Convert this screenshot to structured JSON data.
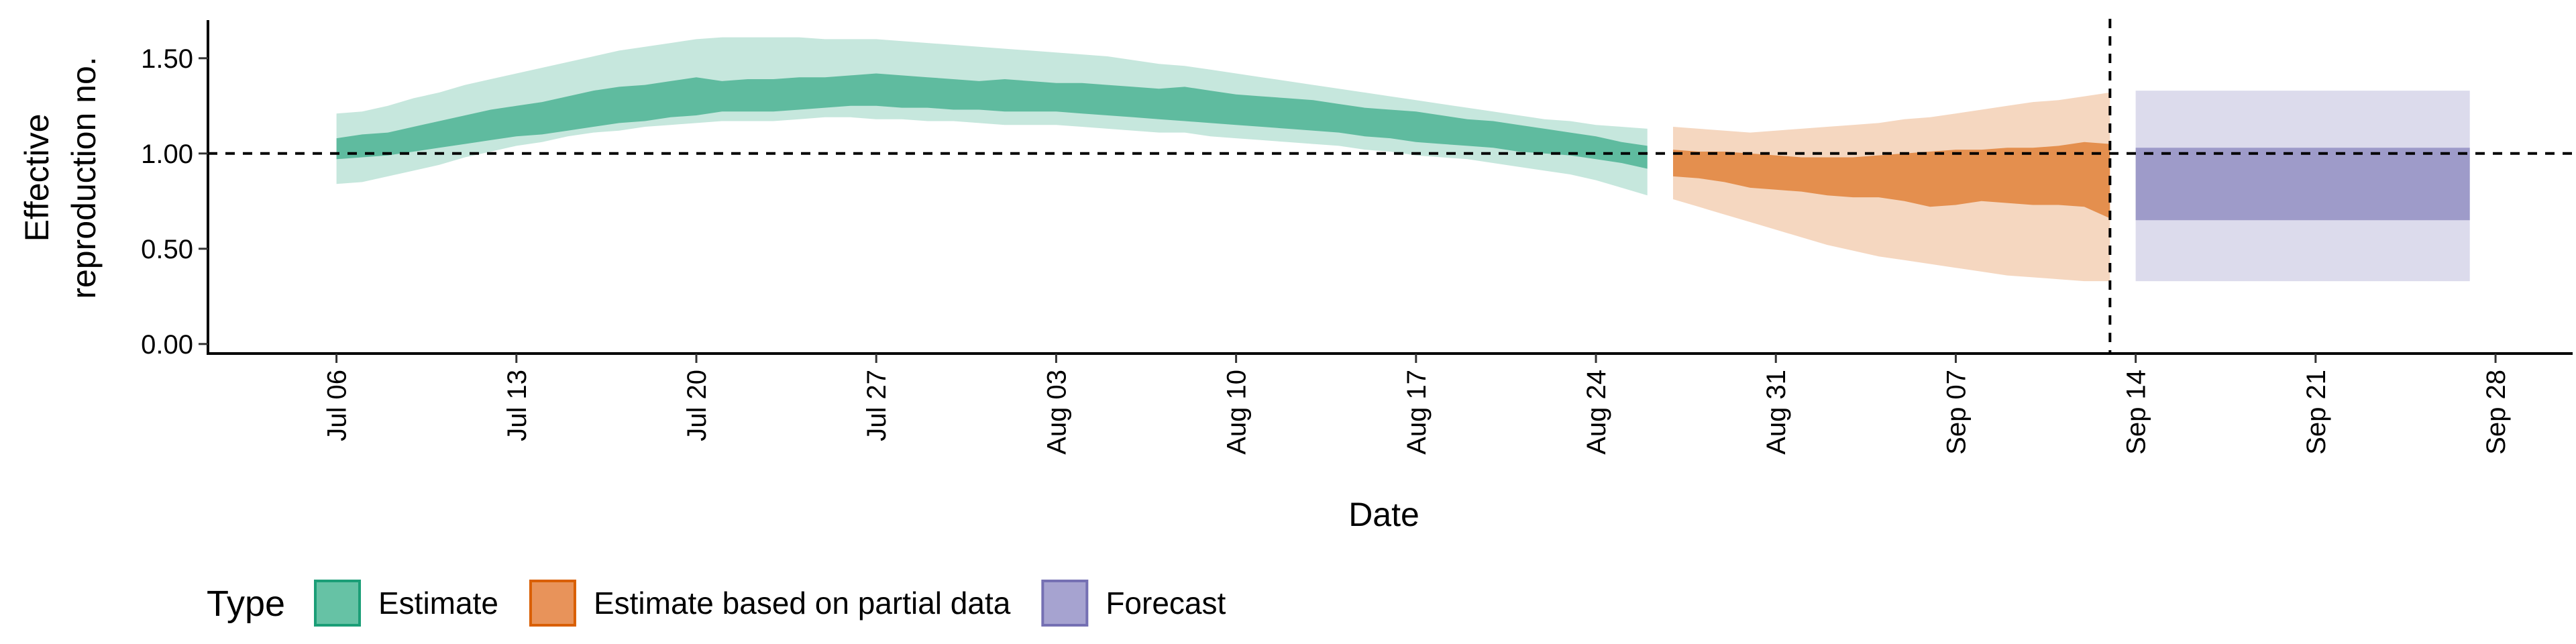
{
  "chart_data": {
    "type": "area",
    "xlabel": "Date",
    "ylabel_lines": [
      "Effective",
      "reproduction no."
    ],
    "ylim": [
      -0.05,
      1.7
    ],
    "xlim": [
      "2020-07-01",
      "2020-10-01"
    ],
    "y_ticks": [
      0.0,
      0.5,
      1.0,
      1.5
    ],
    "y_tick_labels": [
      "0.00",
      "0.50",
      "1.00",
      "1.50"
    ],
    "x_ticks": [
      "2020-07-06",
      "2020-07-13",
      "2020-07-20",
      "2020-07-27",
      "2020-08-03",
      "2020-08-10",
      "2020-08-17",
      "2020-08-24",
      "2020-08-31",
      "2020-09-07",
      "2020-09-14",
      "2020-09-21",
      "2020-09-28"
    ],
    "x_tick_labels": [
      "Jul 06",
      "Jul 13",
      "Jul 20",
      "Jul 27",
      "Aug 03",
      "Aug 10",
      "Aug 17",
      "Aug 24",
      "Aug 31",
      "Sep 07",
      "Sep 14",
      "Sep 21",
      "Sep 28"
    ],
    "reference_line_y": 1.0,
    "reference_line_x": "2020-09-13",
    "grid": false,
    "legend": {
      "title": "Type",
      "position": "bottom",
      "items": [
        {
          "label": "Estimate",
          "fill": "#66c2a5",
          "stroke": "#1b9e77"
        },
        {
          "label": "Estimate based on partial data",
          "fill": "#e8935a",
          "stroke": "#d95f02"
        },
        {
          "label": "Forecast",
          "fill": "#a6a3d0",
          "stroke": "#7570b3"
        }
      ]
    },
    "series": [
      {
        "name": "Estimate",
        "color": "#1b9e77",
        "x": [
          "2020-07-06",
          "2020-07-07",
          "2020-07-08",
          "2020-07-09",
          "2020-07-10",
          "2020-07-11",
          "2020-07-12",
          "2020-07-13",
          "2020-07-14",
          "2020-07-15",
          "2020-07-16",
          "2020-07-17",
          "2020-07-18",
          "2020-07-19",
          "2020-07-20",
          "2020-07-21",
          "2020-07-22",
          "2020-07-23",
          "2020-07-24",
          "2020-07-25",
          "2020-07-26",
          "2020-07-27",
          "2020-07-28",
          "2020-07-29",
          "2020-07-30",
          "2020-07-31",
          "2020-08-01",
          "2020-08-02",
          "2020-08-03",
          "2020-08-04",
          "2020-08-05",
          "2020-08-06",
          "2020-08-07",
          "2020-08-08",
          "2020-08-09",
          "2020-08-10",
          "2020-08-11",
          "2020-08-12",
          "2020-08-13",
          "2020-08-14",
          "2020-08-15",
          "2020-08-16",
          "2020-08-17",
          "2020-08-18",
          "2020-08-19",
          "2020-08-20",
          "2020-08-21",
          "2020-08-22",
          "2020-08-23",
          "2020-08-24",
          "2020-08-25",
          "2020-08-26"
        ],
        "lower_90": [
          0.84,
          0.85,
          0.88,
          0.91,
          0.94,
          0.98,
          1.01,
          1.04,
          1.06,
          1.09,
          1.11,
          1.12,
          1.14,
          1.15,
          1.16,
          1.17,
          1.17,
          1.17,
          1.18,
          1.19,
          1.19,
          1.18,
          1.18,
          1.17,
          1.17,
          1.16,
          1.15,
          1.15,
          1.15,
          1.14,
          1.13,
          1.12,
          1.11,
          1.11,
          1.09,
          1.08,
          1.07,
          1.06,
          1.05,
          1.04,
          1.02,
          1.01,
          0.99,
          0.98,
          0.97,
          0.95,
          0.93,
          0.91,
          0.89,
          0.86,
          0.82,
          0.78
        ],
        "lower_50": [
          0.97,
          0.98,
          0.99,
          1.01,
          1.03,
          1.05,
          1.07,
          1.09,
          1.1,
          1.12,
          1.14,
          1.16,
          1.17,
          1.19,
          1.2,
          1.22,
          1.22,
          1.22,
          1.23,
          1.24,
          1.25,
          1.25,
          1.24,
          1.24,
          1.23,
          1.23,
          1.22,
          1.22,
          1.22,
          1.21,
          1.2,
          1.19,
          1.18,
          1.17,
          1.16,
          1.15,
          1.14,
          1.13,
          1.12,
          1.11,
          1.09,
          1.08,
          1.06,
          1.05,
          1.04,
          1.03,
          1.01,
          1.0,
          0.99,
          0.97,
          0.95,
          0.92
        ],
        "upper_50": [
          1.08,
          1.1,
          1.11,
          1.14,
          1.17,
          1.2,
          1.23,
          1.25,
          1.27,
          1.3,
          1.33,
          1.35,
          1.36,
          1.38,
          1.4,
          1.38,
          1.39,
          1.39,
          1.4,
          1.4,
          1.41,
          1.42,
          1.41,
          1.4,
          1.39,
          1.38,
          1.39,
          1.38,
          1.37,
          1.37,
          1.36,
          1.35,
          1.34,
          1.35,
          1.33,
          1.31,
          1.3,
          1.29,
          1.28,
          1.26,
          1.24,
          1.23,
          1.22,
          1.2,
          1.18,
          1.17,
          1.15,
          1.13,
          1.11,
          1.09,
          1.06,
          1.04
        ],
        "upper_90": [
          1.21,
          1.22,
          1.25,
          1.29,
          1.32,
          1.36,
          1.39,
          1.42,
          1.45,
          1.48,
          1.51,
          1.54,
          1.56,
          1.58,
          1.6,
          1.61,
          1.61,
          1.61,
          1.61,
          1.6,
          1.6,
          1.6,
          1.59,
          1.58,
          1.57,
          1.56,
          1.55,
          1.54,
          1.53,
          1.52,
          1.51,
          1.49,
          1.47,
          1.46,
          1.44,
          1.42,
          1.4,
          1.38,
          1.36,
          1.34,
          1.32,
          1.3,
          1.28,
          1.26,
          1.24,
          1.22,
          1.2,
          1.18,
          1.17,
          1.15,
          1.14,
          1.13
        ]
      },
      {
        "name": "Estimate based on partial data",
        "color": "#d95f02",
        "x": [
          "2020-08-27",
          "2020-08-28",
          "2020-08-29",
          "2020-08-30",
          "2020-08-31",
          "2020-09-01",
          "2020-09-02",
          "2020-09-03",
          "2020-09-04",
          "2020-09-05",
          "2020-09-06",
          "2020-09-07",
          "2020-09-08",
          "2020-09-09",
          "2020-09-10",
          "2020-09-11",
          "2020-09-12",
          "2020-09-13"
        ],
        "lower_90": [
          0.76,
          0.72,
          0.68,
          0.64,
          0.6,
          0.56,
          0.52,
          0.49,
          0.46,
          0.44,
          0.42,
          0.4,
          0.38,
          0.36,
          0.35,
          0.34,
          0.33,
          0.33
        ],
        "lower_50": [
          0.88,
          0.87,
          0.85,
          0.82,
          0.81,
          0.8,
          0.78,
          0.77,
          0.77,
          0.75,
          0.72,
          0.73,
          0.75,
          0.74,
          0.73,
          0.73,
          0.72,
          0.66
        ],
        "upper_50": [
          1.02,
          1.01,
          1.01,
          1.0,
          0.99,
          0.98,
          0.98,
          0.98,
          0.99,
          1.0,
          1.01,
          1.02,
          1.02,
          1.03,
          1.03,
          1.04,
          1.06,
          1.05
        ],
        "upper_90": [
          1.14,
          1.13,
          1.12,
          1.11,
          1.12,
          1.13,
          1.14,
          1.15,
          1.16,
          1.18,
          1.19,
          1.21,
          1.23,
          1.25,
          1.27,
          1.28,
          1.3,
          1.32
        ]
      },
      {
        "name": "Forecast",
        "color": "#7570b3",
        "x": [
          "2020-09-14",
          "2020-09-27"
        ],
        "lower_90": [
          0.33,
          0.33
        ],
        "lower_50": [
          0.65,
          0.65
        ],
        "upper_50": [
          1.03,
          1.03
        ],
        "upper_90": [
          1.33,
          1.33
        ]
      }
    ]
  }
}
